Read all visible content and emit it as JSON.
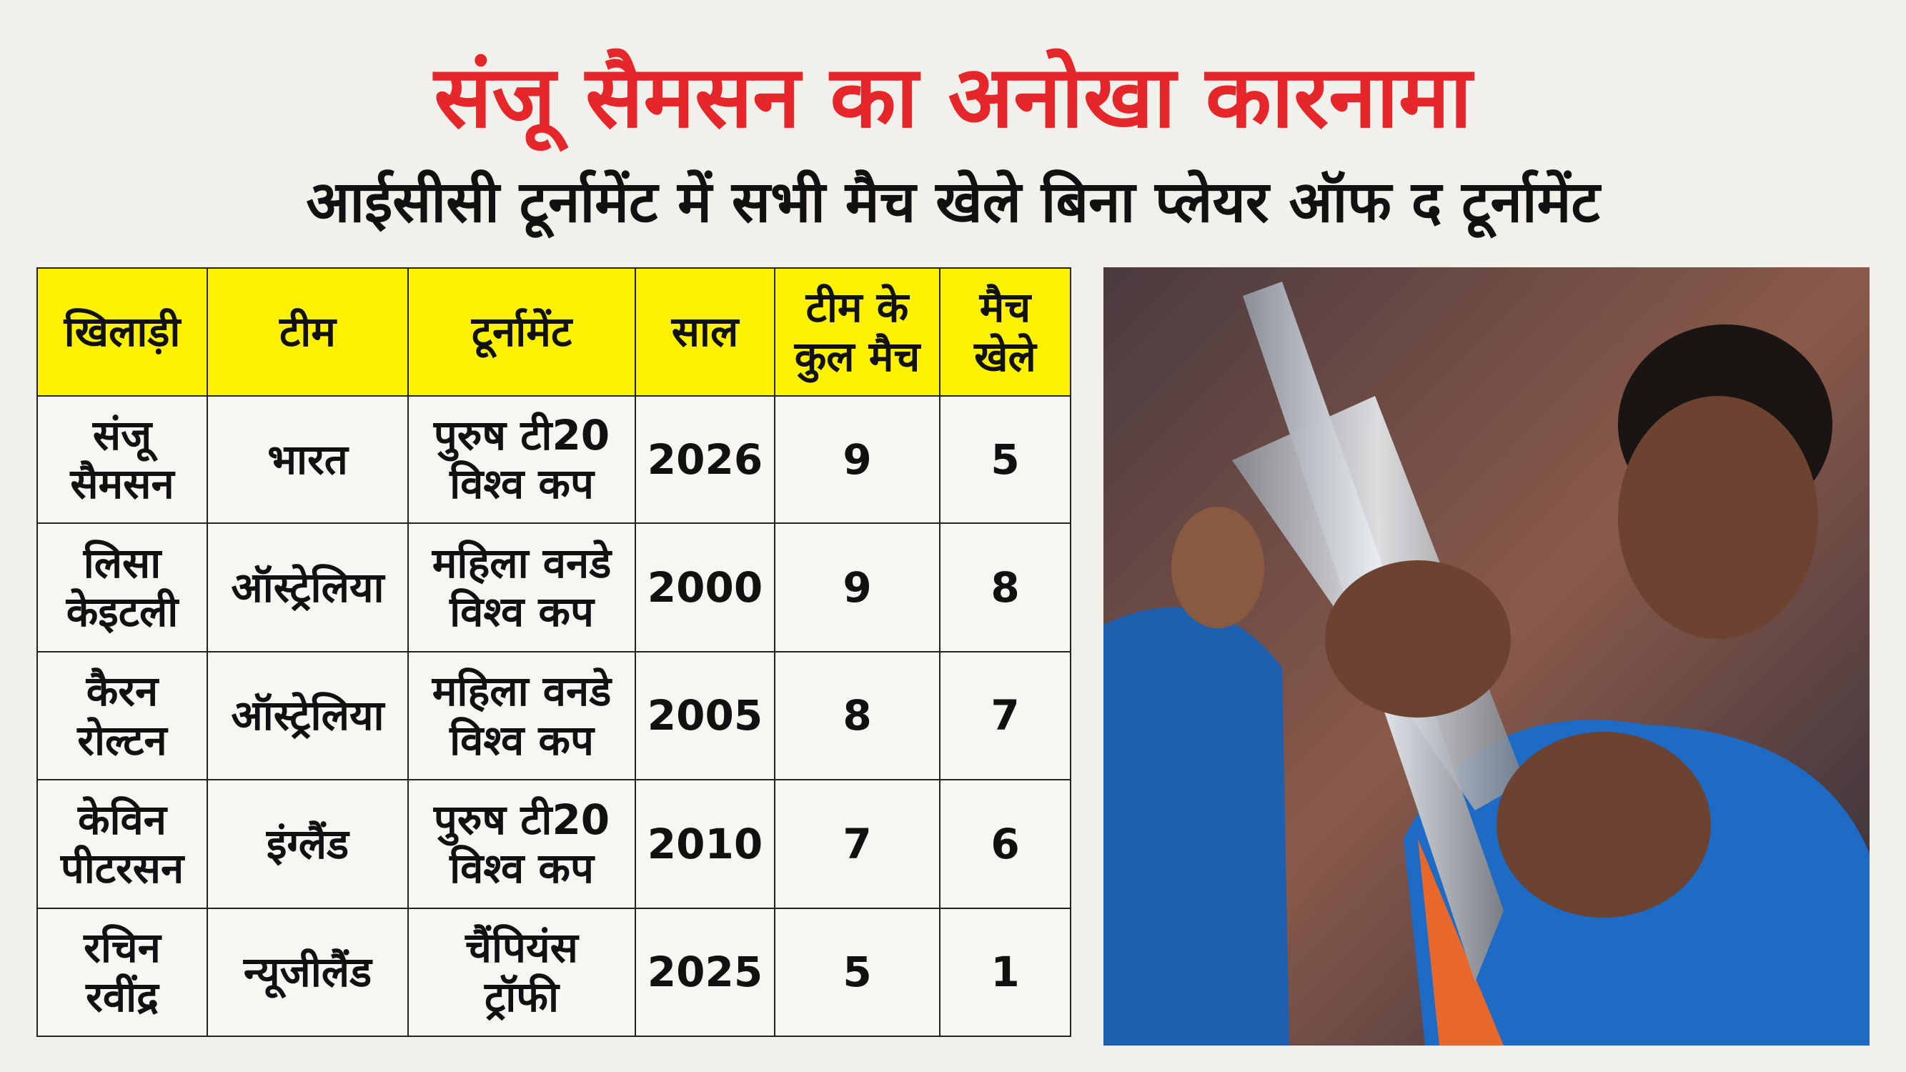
{
  "header": {
    "title": "संजू सैमसन का अनोखा कारनामा",
    "subtitle": "आईसीसी टूर्नामेंट में सभी मैच खेले बिना प्लेयर ऑफ द टूर्नामेंट"
  },
  "table": {
    "columns": [
      [
        "खिलाड़ी"
      ],
      [
        "टीम"
      ],
      [
        "टूर्नामेंट"
      ],
      [
        "साल"
      ],
      [
        "टीम के",
        "कुल मैच"
      ],
      [
        "मैच",
        "खेले"
      ]
    ],
    "rows": [
      [
        [
          "संजू",
          "सैमसन"
        ],
        [
          "भारत"
        ],
        [
          "पुरुष टी20",
          "विश्व कप"
        ],
        [
          2026
        ],
        [
          9
        ],
        [
          5
        ]
      ],
      [
        [
          "लिसा",
          "केइटली"
        ],
        [
          "ऑस्ट्रेलिया"
        ],
        [
          "महिला वनडे",
          "विश्व कप"
        ],
        [
          2000
        ],
        [
          9
        ],
        [
          8
        ]
      ],
      [
        [
          "कैरन",
          "रोल्टन"
        ],
        [
          "ऑस्ट्रेलिया"
        ],
        [
          "महिला वनडे",
          "विश्व कप"
        ],
        [
          2005
        ],
        [
          8
        ],
        [
          7
        ]
      ],
      [
        [
          "केविन",
          "पीटरसन"
        ],
        [
          "इंग्लैंड"
        ],
        [
          "पुरुष टी20",
          "विश्व कप"
        ],
        [
          2010
        ],
        [
          7
        ],
        [
          6
        ]
      ],
      [
        [
          "रचिन",
          "रवींद्र"
        ],
        [
          "न्यूजीलैंड"
        ],
        [
          "चैंपियंस",
          "ट्रॉफी"
        ],
        [
          2025
        ],
        [
          5
        ],
        [
          1
        ]
      ]
    ]
  }
}
